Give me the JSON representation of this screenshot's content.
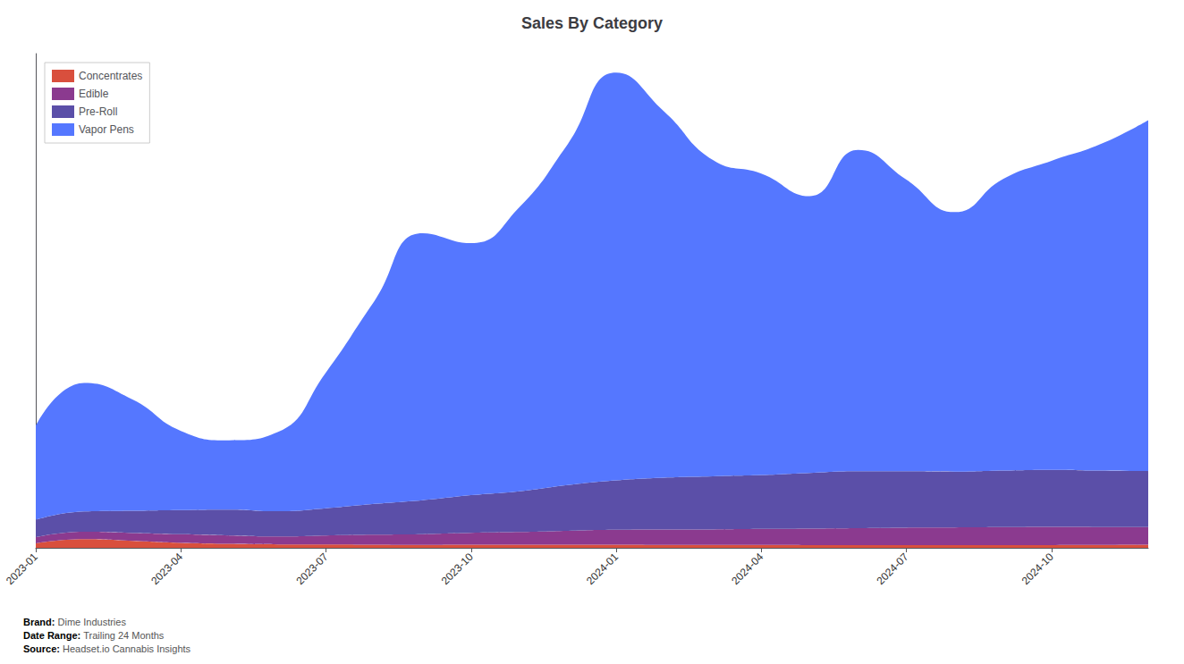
{
  "chart_data": {
    "type": "area",
    "title": "Sales By Category",
    "stacked": true,
    "categories": [
      "2023-01",
      null,
      null,
      "2023-04",
      null,
      null,
      "2023-07",
      null,
      null,
      "2023-10",
      null,
      null,
      "2024-01",
      null,
      null,
      "2024-04",
      null,
      null,
      "2024-07",
      null,
      null,
      "2024-10",
      null,
      null
    ],
    "series": [
      {
        "name": "Concentrates",
        "color": "#d94f3d",
        "values": [
          180,
          350,
          280,
          200,
          160,
          140,
          140,
          130,
          120,
          130,
          130,
          130,
          130,
          120,
          115,
          115,
          110,
          110,
          108,
          105,
          108,
          110,
          115,
          125
        ]
      },
      {
        "name": "Edible",
        "color": "#8b3a8f",
        "values": [
          250,
          300,
          320,
          350,
          340,
          320,
          360,
          400,
          430,
          480,
          510,
          560,
          600,
          620,
          630,
          650,
          670,
          690,
          710,
          720,
          730,
          740,
          730,
          720
        ]
      },
      {
        "name": "Pre-Roll",
        "color": "#5b4fa8",
        "values": [
          700,
          820,
          900,
          980,
          1050,
          1020,
          1100,
          1250,
          1380,
          1520,
          1650,
          1850,
          2000,
          2100,
          2150,
          2180,
          2250,
          2300,
          2280,
          2260,
          2290,
          2310,
          2280,
          2260
        ]
      },
      {
        "name": "Vapor Pens",
        "color": "#5577ff",
        "values": [
          3800,
          5200,
          4500,
          3200,
          2800,
          3200,
          5500,
          8200,
          10800,
          10200,
          11500,
          13800,
          16500,
          14800,
          12800,
          12200,
          11200,
          13000,
          11800,
          10500,
          11800,
          12500,
          13200,
          14200
        ]
      }
    ],
    "ylim": [
      0,
      20000
    ],
    "grid": false,
    "legend": "upper left",
    "tick_labels": "x",
    "annotations": [
      {
        "label": "Brand:",
        "text": "Dime Industries"
      },
      {
        "label": "Date Range:",
        "text": "Trailing 24 Months"
      },
      {
        "label": "Source:",
        "text": "Headset.io Cannabis Insights"
      }
    ]
  }
}
